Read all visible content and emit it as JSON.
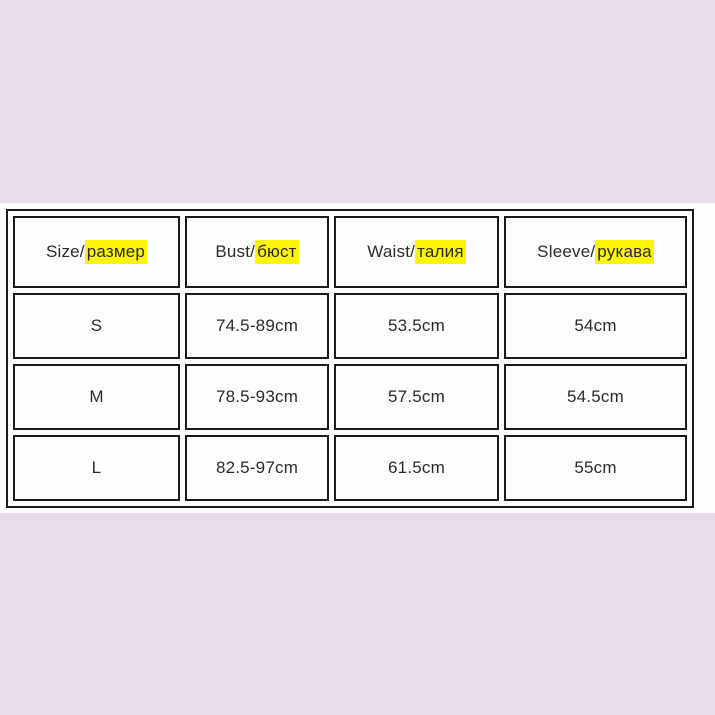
{
  "colors": {
    "page_background": "#e8dcea",
    "panel_background": "#fdfdfe",
    "table_border": "#1b1b1b",
    "text": "#2b2b2b",
    "highlight": "#fcf503"
  },
  "table": {
    "headers": [
      {
        "en": "Size/",
        "ru": "размер"
      },
      {
        "en": "Bust/",
        "ru": "бюст"
      },
      {
        "en": "Waist/",
        "ru": "талия"
      },
      {
        "en": "Sleeve/",
        "ru": "рукава"
      }
    ],
    "rows": [
      {
        "size": "S",
        "bust": "74.5-89cm",
        "waist": "53.5cm",
        "sleeve": "54cm"
      },
      {
        "size": "M",
        "bust": "78.5-93cm",
        "waist": "57.5cm",
        "sleeve": "54.5cm"
      },
      {
        "size": "L",
        "bust": "82.5-97cm",
        "waist": "61.5cm",
        "sleeve": "55cm"
      }
    ]
  },
  "chart_data": {
    "type": "table",
    "title": "Garment size chart (bilingual English/Russian)",
    "columns": [
      "Size/размер",
      "Bust/бюст",
      "Waist/талия",
      "Sleeve/рукава"
    ],
    "rows": [
      [
        "S",
        "74.5-89cm",
        "53.5cm",
        "54cm"
      ],
      [
        "M",
        "78.5-93cm",
        "57.5cm",
        "54.5cm"
      ],
      [
        "L",
        "82.5-97cm",
        "61.5cm",
        "55cm"
      ]
    ]
  }
}
